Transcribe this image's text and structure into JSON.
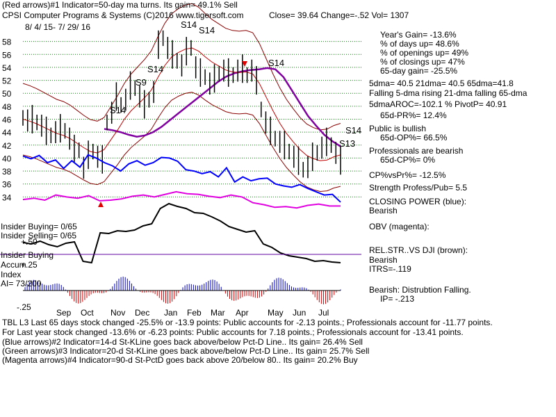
{
  "header": {
    "line1": "(Red arrows)#1 Indicator=50-day ma turns.  Its gain= 49.1% Sell",
    "company": "CPSI   Computer Programs & Systems  (C)2016 www.tigersoft.com",
    "quote": "Close=  39.64  Change=-.52 Vol= 1307",
    "date_range": "8/ 4/ 15-  7/ 29/ 16"
  },
  "stats": [
    "Year's Gain= -13.6%",
    "% of days up= 48.6%",
    "% of openings up= 49%",
    "% of closings up= 47%",
    "65-day gain= -25.5%"
  ],
  "ma_info": [
    "5dma= 40.5  21dma= 40.5  65dma=41.8",
    "Falling 5-dma  rising 21-dma  falling 65-dma",
    "5dmaAROC=-102.1  %  PivotP= 40.91",
    "65d-PR%= 12.4%"
  ],
  "public_info": [
    "Public is bullish",
    "65d-OP%= 66.5%"
  ],
  "pro_info": [
    "Professionals are bearish",
    "65d-CP%= 0%"
  ],
  "ratio_info": [
    "CP%vsPr%= -12.5%",
    "Strength Profess/Pub= 5.5"
  ],
  "closing_power": [
    "CLOSING POWER (blue):",
    "Bearish"
  ],
  "obv_label": "OBV (magenta):",
  "relstr": [
    "REL.STR..VS DJI (brown):",
    "Bearish",
    "ITRS=-.119"
  ],
  "insider": {
    "buying": "Insider Buying= 0/65",
    "selling": "Insider Selling= 0/65",
    "buying2": "Insider Buying"
  },
  "accum": {
    "label1": "Accum",
    "label2": "Index",
    "value": "AI= 73/200",
    "tick_plus50": "+.50",
    "tick_plus25": "+.25",
    "tick_minus25": "-.25",
    "bearish": "Bearish: Distrubtion Falling.",
    "ip": "IP= -.213"
  },
  "footer": [
    "TBL L3 Last 65 days stock changed -25.5% or -13.9 points:  Public accounts for -2.13 points.;  Professionals account for -11.77 points.",
    "For Last year stock changed -13.6% or -6.23 points:  Public accounts for  7.18 points.;  Professionals account for -13.41 points.",
    "(Blue arrows)#2 Indicator=14-d St-KLine goes back above/below Pct-D Line.. Its gain= 26.4% Sell",
    "(Green arrows)#3 Indicator=20-d St-KLine goes back above/below Pct-D Line.. Its gain= 25.7% Sell",
    "(Magenta arrows)#4 Indicator=90-d St-PctD goes back above 20/below 80.. Its gain= 20.2% Buy"
  ],
  "signals": [
    "S14",
    "S9",
    "S14",
    "S14",
    "S14",
    "S14",
    "S14",
    "S13"
  ],
  "colors": {
    "price": "#000000",
    "ma21": "#c00000",
    "ma65": "#8000a0",
    "bands": "#8b0000",
    "closing_power": "#0000ff",
    "obv": "#e000e0",
    "relstr": "#000000",
    "grid": "#008000",
    "accum_pos": "#0000c0",
    "accum_neg": "#d00000"
  },
  "chart_data": {
    "type": "line",
    "title": "CPSI Computer Programs & Systems",
    "period": "8/4/15 - 7/29/16",
    "y_axis": {
      "min": 32,
      "max": 60,
      "ticks": [
        34,
        36,
        38,
        40,
        42,
        44,
        46,
        48,
        50,
        52,
        54,
        56,
        58
      ]
    },
    "months": [
      "Sep",
      "Oct",
      "Nov",
      "Dec",
      "Jan",
      "Feb",
      "Mar",
      "Apr",
      "May",
      "Jun",
      "Jul"
    ],
    "close": [
      46.2,
      45.8,
      46.0,
      45.5,
      45.0,
      44.2,
      43.5,
      44.0,
      44.6,
      44.2,
      43.0,
      41.4,
      41.2,
      38.5,
      40.5,
      41.0,
      40.2,
      39.8,
      45.5,
      47.0,
      49.5,
      48.2,
      49.0,
      51.2,
      50.8,
      49.5,
      48.3,
      49.0,
      50.2,
      57.5,
      58.5,
      57.0,
      56.0,
      55.0,
      54.3,
      56.5,
      57.0,
      54.0,
      53.2,
      52.5,
      51.5,
      52.3,
      53.0,
      53.5,
      53.2,
      52.8,
      53.5,
      53.8,
      52.8,
      53.5,
      52.0,
      47.5,
      45.5,
      44.2,
      43.0,
      42.5,
      42.0,
      41.0,
      40.2,
      39.6,
      38.2,
      38.6,
      40.2,
      40.8,
      41.6,
      42.5,
      42.0,
      40.8,
      39.64
    ],
    "ma21": [
      46.0,
      45.7,
      45.3,
      44.8,
      44.3,
      43.8,
      43.5,
      43.0,
      42.3,
      41.6,
      41.0,
      40.8,
      41.3,
      42.8,
      44.3,
      46.0,
      47.3,
      48.3,
      49.3,
      50.5,
      52.5,
      54.3,
      55.6,
      56.3,
      56.8,
      57.0,
      56.5,
      55.6,
      54.8,
      54.2,
      53.6,
      53.3,
      53.2,
      53.3,
      53.0,
      51.5,
      49.4,
      47.3,
      45.4,
      43.8,
      42.5,
      41.3,
      40.4,
      39.9,
      39.6,
      39.7,
      40.2,
      40.5
    ],
    "ma65": [
      44.5,
      44.3,
      44.0,
      43.6,
      43.3,
      43.5,
      44.0,
      44.8,
      45.8,
      46.8,
      47.8,
      48.8,
      49.8,
      50.8,
      51.8,
      52.6,
      53.1,
      53.4,
      53.6,
      53.7,
      53.9,
      53.7,
      52.5,
      50.5,
      48.5,
      46.5,
      45.0,
      43.6,
      42.6,
      41.8
    ],
    "closing_power": [
      40.3,
      39.9,
      40.4,
      39.3,
      39.7,
      38.4,
      39.6,
      38.6,
      40.5,
      40.0,
      39.3,
      38.8,
      38.0,
      39.1,
      39.6,
      38.9,
      39.3,
      40.1,
      40.0,
      39.5,
      38.2,
      38.0,
      37.6,
      37.9,
      37.1,
      38.5,
      36.3,
      37.1,
      36.5,
      36.8,
      36.9,
      36.0,
      35.7,
      35.5,
      35.9,
      35.3,
      34.8,
      34.3,
      34.4,
      33.2
    ],
    "obv": [
      33.6,
      33.8,
      33.5,
      34.3,
      34.0,
      33.8,
      34.2,
      33.4,
      33.5,
      33.7,
      34.1,
      34.3,
      34.0,
      34.4,
      34.8,
      34.5,
      34.4,
      34.1,
      33.9,
      34.3,
      34.0,
      33.1,
      32.8,
      32.4,
      32.5,
      32.3,
      32.7,
      32.9,
      32.6,
      32.6
    ]
  }
}
